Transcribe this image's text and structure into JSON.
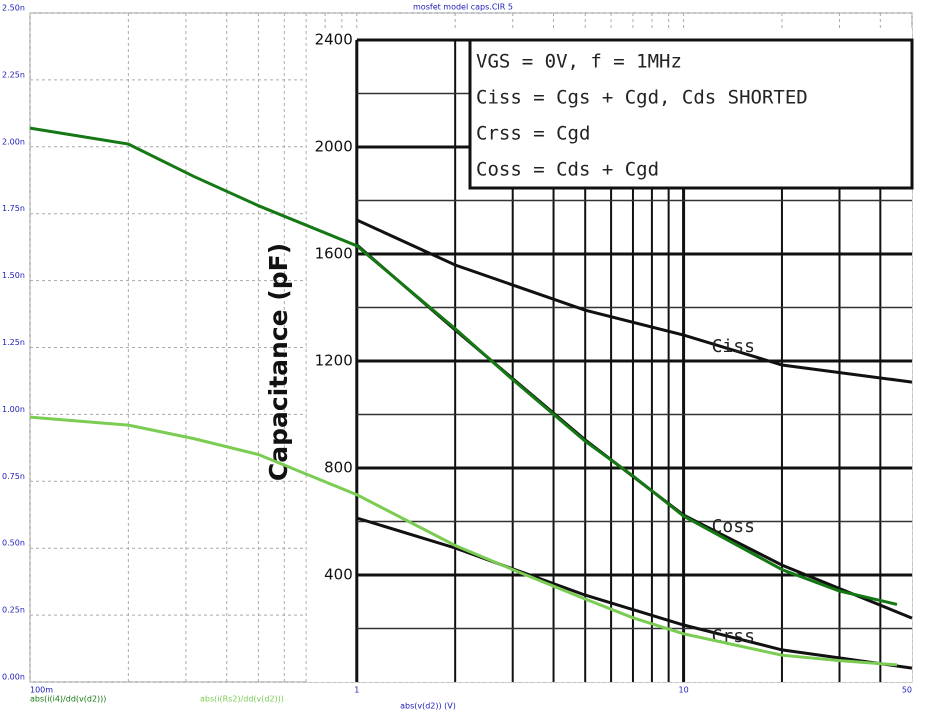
{
  "chart_data": [
    {
      "type": "line",
      "title": "mosfet model caps.CIR 5",
      "x_label": "abs(v(d2)) (V)",
      "x": [
        0.1,
        0.2,
        0.316,
        0.5,
        1,
        2,
        3,
        5,
        7,
        10,
        20,
        30,
        45
      ],
      "series": [
        {
          "name": "abs(i(i4)/dd(v(d2)))",
          "color": "#147814",
          "values": [
            2.07e-09,
            2.01e-09,
            1.89e-09,
            1.78e-09,
            1.63e-09,
            1.32e-09,
            1.13e-09,
            9e-10,
            7.7e-10,
            6.2e-10,
            4.2e-10,
            3.4e-10,
            2.9e-10
          ]
        },
        {
          "name": "abs(i(Rs2)/dd(v(d2)))",
          "color": "#7acc52",
          "values": [
            9.9e-10,
            9.6e-10,
            9.1e-10,
            8.5e-10,
            7e-10,
            5.1e-10,
            4.2e-10,
            3.1e-10,
            2.4e-10,
            1.8e-10,
            1e-10,
            8e-11,
            6.4e-11
          ]
        }
      ],
      "xlim": [
        0.1,
        50
      ],
      "x_log": true,
      "xticks": [
        {
          "value": 0.1,
          "label": "100m"
        },
        1,
        10,
        50
      ],
      "ylim": [
        0,
        2.5e-09
      ],
      "yticks": [
        {
          "value": 0,
          "label": "0.00n"
        },
        {
          "value": 2.5e-10,
          "label": "0.25n"
        },
        {
          "value": 5e-10,
          "label": "0.50n"
        },
        {
          "value": 7.5e-10,
          "label": "0.75n"
        },
        {
          "value": 1e-09,
          "label": "1.00n"
        },
        {
          "value": 1.25e-09,
          "label": "1.25n"
        },
        {
          "value": 1.5e-09,
          "label": "1.50n"
        },
        {
          "value": 1.75e-09,
          "label": "1.75n"
        },
        {
          "value": 2e-09,
          "label": "2.00n"
        },
        {
          "value": 2.25e-09,
          "label": "2.25n"
        },
        {
          "value": 2.5e-09,
          "label": "2.50n"
        }
      ],
      "grid": true
    },
    {
      "type": "line",
      "y_label": "Capacitance (pF)",
      "annotations": [
        "VGS = 0V, f = 1MHz",
        "Ciss = Cgs + Cgd, Cds SHORTED",
        "Crss = Cgd",
        "Coss = Cds + Cgd"
      ],
      "x": [
        1,
        2,
        5,
        10,
        20,
        50
      ],
      "series": [
        {
          "name": "Ciss",
          "color": "#111111",
          "values": [
            1727,
            1559,
            1390,
            1297,
            1185,
            1121
          ]
        },
        {
          "name": "Coss",
          "color": "#111111",
          "values": [
            1634,
            1316,
            905,
            624,
            437,
            239
          ]
        },
        {
          "name": "Crss",
          "color": "#111111",
          "values": [
            613,
            501,
            325,
            213,
            120,
            52
          ]
        }
      ],
      "xlim": [
        1,
        50
      ],
      "x_log": true,
      "ylim": [
        0,
        2400
      ],
      "yticks": [
        400,
        800,
        1200,
        1600,
        2000,
        2400
      ],
      "grid": true
    }
  ]
}
